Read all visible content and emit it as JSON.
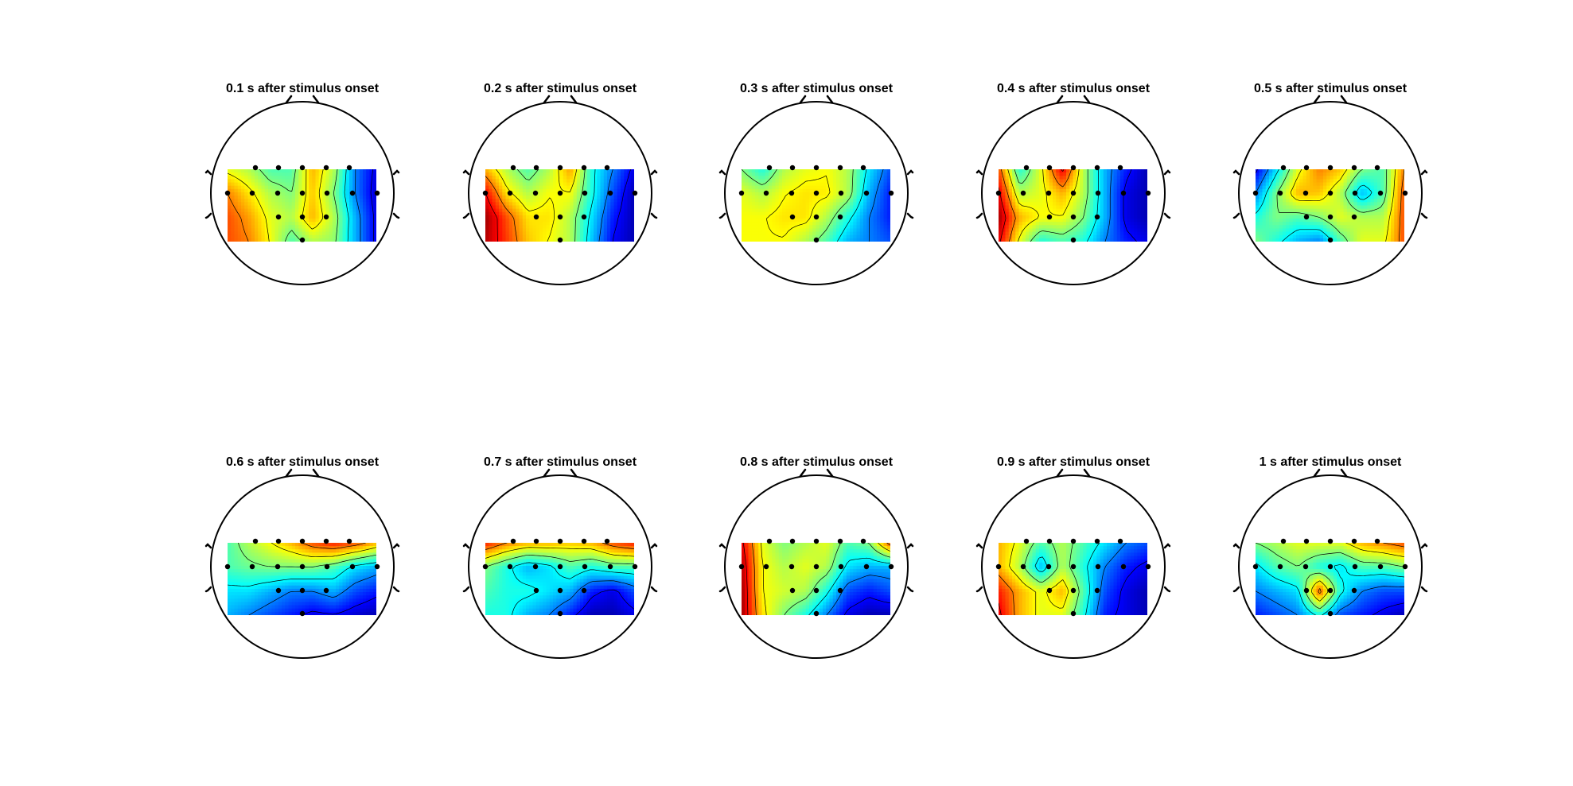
{
  "figure": {
    "background": "#ffffff",
    "colormap": "jet",
    "colors": {
      "head_outline": "#000000",
      "electrode": "#000000",
      "contour": "#000000"
    }
  },
  "chart_data": [
    {
      "type": "heatmap",
      "title": "0.1 s after stimulus onset",
      "grid": [
        [
          0.6,
          0.55,
          0.45,
          0.45,
          0.7,
          0.55,
          0.25,
          0.1
        ],
        [
          0.75,
          0.65,
          0.55,
          0.5,
          0.68,
          0.5,
          0.25,
          0.08
        ],
        [
          0.8,
          0.72,
          0.6,
          0.55,
          0.7,
          0.55,
          0.3,
          0.1
        ],
        [
          0.8,
          0.75,
          0.62,
          0.45,
          0.55,
          0.52,
          0.3,
          0.1
        ]
      ]
    },
    {
      "type": "heatmap",
      "title": "0.2 s after stimulus onset",
      "grid": [
        [
          0.7,
          0.55,
          0.45,
          0.55,
          0.72,
          0.4,
          0.25,
          0.1
        ],
        [
          0.88,
          0.65,
          0.55,
          0.62,
          0.62,
          0.4,
          0.2,
          0.05
        ],
        [
          0.97,
          0.8,
          0.65,
          0.65,
          0.55,
          0.35,
          0.15,
          0.05
        ],
        [
          0.95,
          0.82,
          0.68,
          0.62,
          0.55,
          0.32,
          0.12,
          0.05
        ]
      ]
    },
    {
      "type": "heatmap",
      "title": "0.3 s after stimulus onset",
      "grid": [
        [
          0.5,
          0.4,
          0.55,
          0.6,
          0.62,
          0.55,
          0.35,
          0.2
        ],
        [
          0.6,
          0.55,
          0.62,
          0.65,
          0.64,
          0.55,
          0.3,
          0.15
        ],
        [
          0.62,
          0.62,
          0.65,
          0.65,
          0.55,
          0.4,
          0.25,
          0.15
        ],
        [
          0.62,
          0.62,
          0.62,
          0.55,
          0.45,
          0.3,
          0.25,
          0.2
        ]
      ]
    },
    {
      "type": "heatmap",
      "title": "0.4 s after stimulus onset",
      "grid": [
        [
          0.8,
          0.4,
          0.6,
          0.9,
          0.55,
          0.3,
          0.15,
          0.05
        ],
        [
          0.9,
          0.55,
          0.6,
          0.7,
          0.55,
          0.3,
          0.1,
          0.05
        ],
        [
          0.97,
          0.7,
          0.62,
          0.62,
          0.5,
          0.3,
          0.1,
          0.05
        ],
        [
          0.9,
          0.6,
          0.4,
          0.45,
          0.4,
          0.25,
          0.15,
          0.1
        ]
      ]
    },
    {
      "type": "heatmap",
      "title": "0.5 s after stimulus onset",
      "grid": [
        [
          0.1,
          0.35,
          0.6,
          0.75,
          0.68,
          0.5,
          0.45,
          0.75
        ],
        [
          0.25,
          0.5,
          0.7,
          0.68,
          0.55,
          0.3,
          0.45,
          0.8
        ],
        [
          0.4,
          0.5,
          0.45,
          0.5,
          0.6,
          0.55,
          0.55,
          0.8
        ],
        [
          0.5,
          0.4,
          0.3,
          0.25,
          0.45,
          0.6,
          0.6,
          0.8
        ]
      ]
    },
    {
      "type": "heatmap",
      "title": "0.6 s after stimulus onset",
      "grid": [
        [
          0.45,
          0.55,
          0.62,
          0.7,
          0.8,
          0.85,
          0.8,
          0.7
        ],
        [
          0.45,
          0.48,
          0.5,
          0.5,
          0.5,
          0.45,
          0.35,
          0.3
        ],
        [
          0.35,
          0.35,
          0.3,
          0.25,
          0.25,
          0.3,
          0.2,
          0.15
        ],
        [
          0.3,
          0.25,
          0.2,
          0.15,
          0.1,
          0.12,
          0.08,
          0.05
        ]
      ]
    },
    {
      "type": "heatmap",
      "title": "0.7 s after stimulus onset",
      "grid": [
        [
          0.85,
          0.75,
          0.7,
          0.7,
          0.68,
          0.7,
          0.8,
          0.85
        ],
        [
          0.5,
          0.4,
          0.3,
          0.35,
          0.45,
          0.4,
          0.45,
          0.45
        ],
        [
          0.45,
          0.4,
          0.4,
          0.35,
          0.3,
          0.15,
          0.1,
          0.2
        ],
        [
          0.4,
          0.4,
          0.3,
          0.25,
          0.15,
          0.05,
          0.05,
          0.1
        ]
      ]
    },
    {
      "type": "heatmap",
      "title": "0.8 s after stimulus onset",
      "grid": [
        [
          0.9,
          0.6,
          0.5,
          0.55,
          0.6,
          0.45,
          0.5,
          0.8
        ],
        [
          0.95,
          0.62,
          0.55,
          0.6,
          0.55,
          0.35,
          0.3,
          0.3
        ],
        [
          0.97,
          0.62,
          0.58,
          0.55,
          0.4,
          0.2,
          0.15,
          0.2
        ],
        [
          0.97,
          0.65,
          0.5,
          0.4,
          0.25,
          0.1,
          0.05,
          0.05
        ]
      ]
    },
    {
      "type": "heatmap",
      "title": "0.9 s after stimulus onset",
      "grid": [
        [
          0.7,
          0.6,
          0.45,
          0.55,
          0.45,
          0.35,
          0.25,
          0.2
        ],
        [
          0.7,
          0.55,
          0.3,
          0.55,
          0.4,
          0.25,
          0.15,
          0.1
        ],
        [
          0.85,
          0.7,
          0.6,
          0.7,
          0.45,
          0.2,
          0.1,
          0.05
        ],
        [
          0.9,
          0.7,
          0.6,
          0.6,
          0.4,
          0.15,
          0.1,
          0.05
        ]
      ]
    },
    {
      "type": "heatmap",
      "title": "1 s after stimulus onset",
      "grid": [
        [
          0.5,
          0.55,
          0.6,
          0.6,
          0.6,
          0.7,
          0.75,
          0.8
        ],
        [
          0.35,
          0.45,
          0.5,
          0.4,
          0.35,
          0.45,
          0.45,
          0.5
        ],
        [
          0.25,
          0.3,
          0.35,
          0.8,
          0.4,
          0.25,
          0.2,
          0.2
        ],
        [
          0.15,
          0.2,
          0.25,
          0.4,
          0.2,
          0.15,
          0.1,
          0.05
        ]
      ]
    }
  ]
}
